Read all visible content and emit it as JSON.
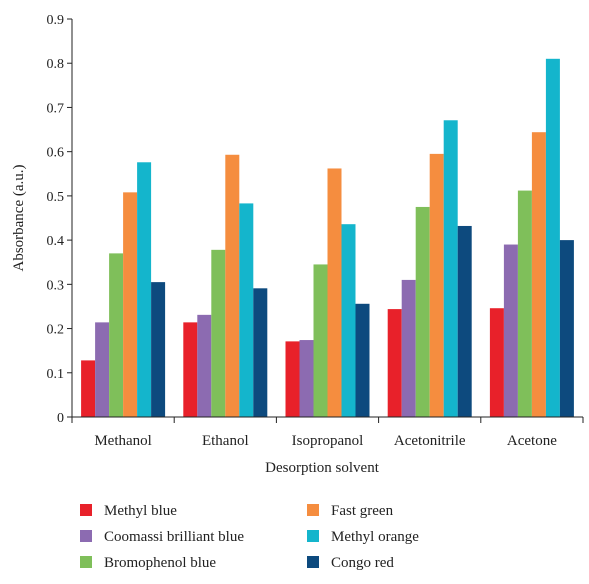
{
  "chart_data": {
    "type": "bar",
    "title": "",
    "xlabel": "Desorption solvent",
    "ylabel": "Absorbance (a.u.)",
    "ylim": [
      0,
      0.9
    ],
    "yticks": [
      "0",
      "0.1",
      "0.2",
      "0.3",
      "0.4",
      "0.5",
      "0.6",
      "0.7",
      "0.8",
      "0.9"
    ],
    "grid": false,
    "legend_position": "bottom",
    "categories": [
      "Methanol",
      "Ethanol",
      "Isopropanol",
      "Acetonitrile",
      "Acetone"
    ],
    "series": [
      {
        "name": "Methyl blue",
        "color": "#e8212a",
        "values": [
          0.128,
          0.214,
          0.171,
          0.244,
          0.246
        ]
      },
      {
        "name": "Coomassi brilliant blue",
        "color": "#8c6bb1",
        "values": [
          0.214,
          0.231,
          0.174,
          0.31,
          0.39
        ]
      },
      {
        "name": "Bromophenol blue",
        "color": "#7fbf5a",
        "values": [
          0.37,
          0.378,
          0.345,
          0.475,
          0.512
        ]
      },
      {
        "name": "Fast green",
        "color": "#f58d3f",
        "values": [
          0.508,
          0.593,
          0.562,
          0.595,
          0.644
        ]
      },
      {
        "name": "Methyl orange",
        "color": "#14b5cc",
        "values": [
          0.576,
          0.483,
          0.436,
          0.671,
          0.81
        ]
      },
      {
        "name": "Congo red",
        "color": "#0d4a7e",
        "values": [
          0.305,
          0.291,
          0.256,
          0.432,
          0.4
        ]
      }
    ]
  }
}
